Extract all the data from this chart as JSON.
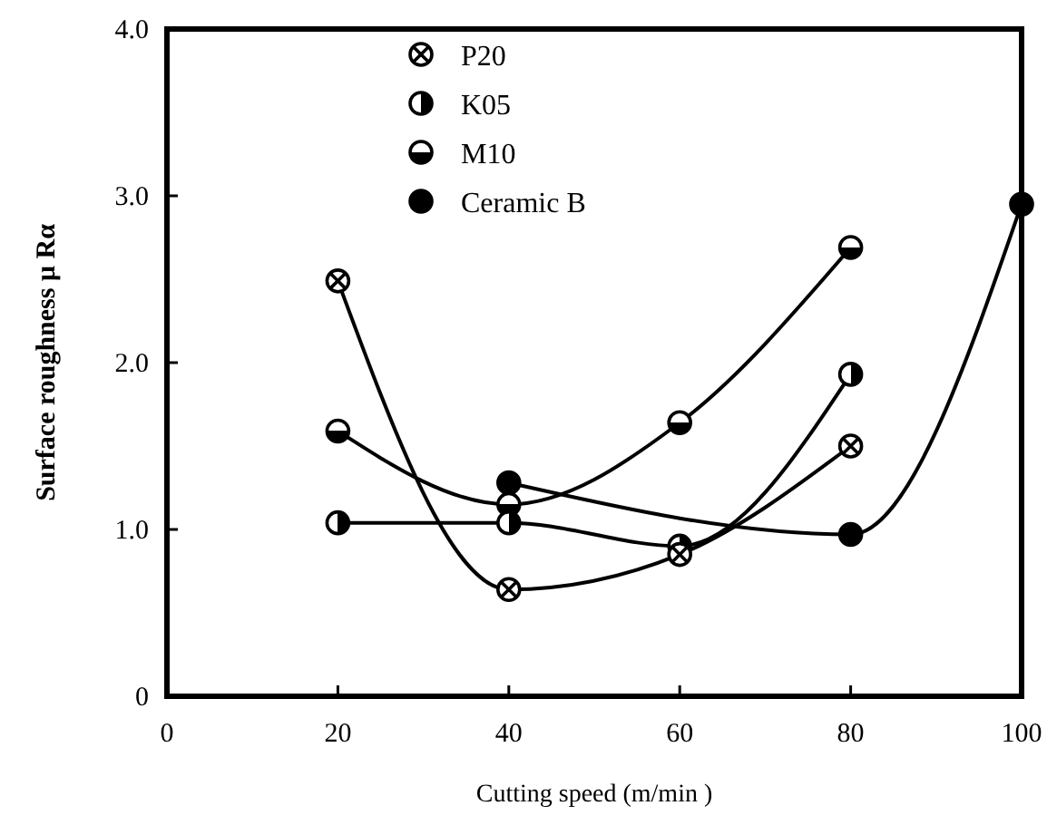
{
  "chart_data": {
    "type": "line",
    "xlabel": "Cutting speed   (m/min )",
    "ylabel": "Surface roughness μ Rα",
    "xlim": [
      0,
      100
    ],
    "xticks": [
      0,
      20,
      40,
      60,
      80,
      100
    ],
    "ylim": [
      0,
      4
    ],
    "yticks": [
      0,
      {
        "value": 1,
        "label": "1.0"
      },
      {
        "value": 2,
        "label": "2.0"
      },
      {
        "value": 3,
        "label": "3.0"
      },
      {
        "value": 4,
        "label": "4.0"
      }
    ],
    "grid": false,
    "legend": "top",
    "line_style": "solid",
    "series": [
      {
        "name": "P20",
        "color": "#000000",
        "marker": "cross",
        "x": [
          20,
          40,
          60,
          80
        ],
        "values": [
          2.49,
          0.64,
          0.85,
          1.5
        ]
      },
      {
        "name": "K05",
        "color": "#000000",
        "marker": "circle",
        "x": [
          20,
          40,
          60,
          80
        ],
        "values": [
          1.04,
          1.04,
          0.9,
          1.93
        ]
      },
      {
        "name": "M10",
        "color": "#000000",
        "marker": "circle",
        "x": [
          20,
          40,
          60,
          80
        ],
        "values": [
          1.59,
          1.15,
          1.64,
          2.69
        ]
      },
      {
        "name": "Ceramic B",
        "color": "#000000",
        "marker": "circle",
        "x": [
          40,
          80,
          100
        ],
        "values": [
          1.28,
          0.97,
          2.95
        ]
      }
    ]
  }
}
